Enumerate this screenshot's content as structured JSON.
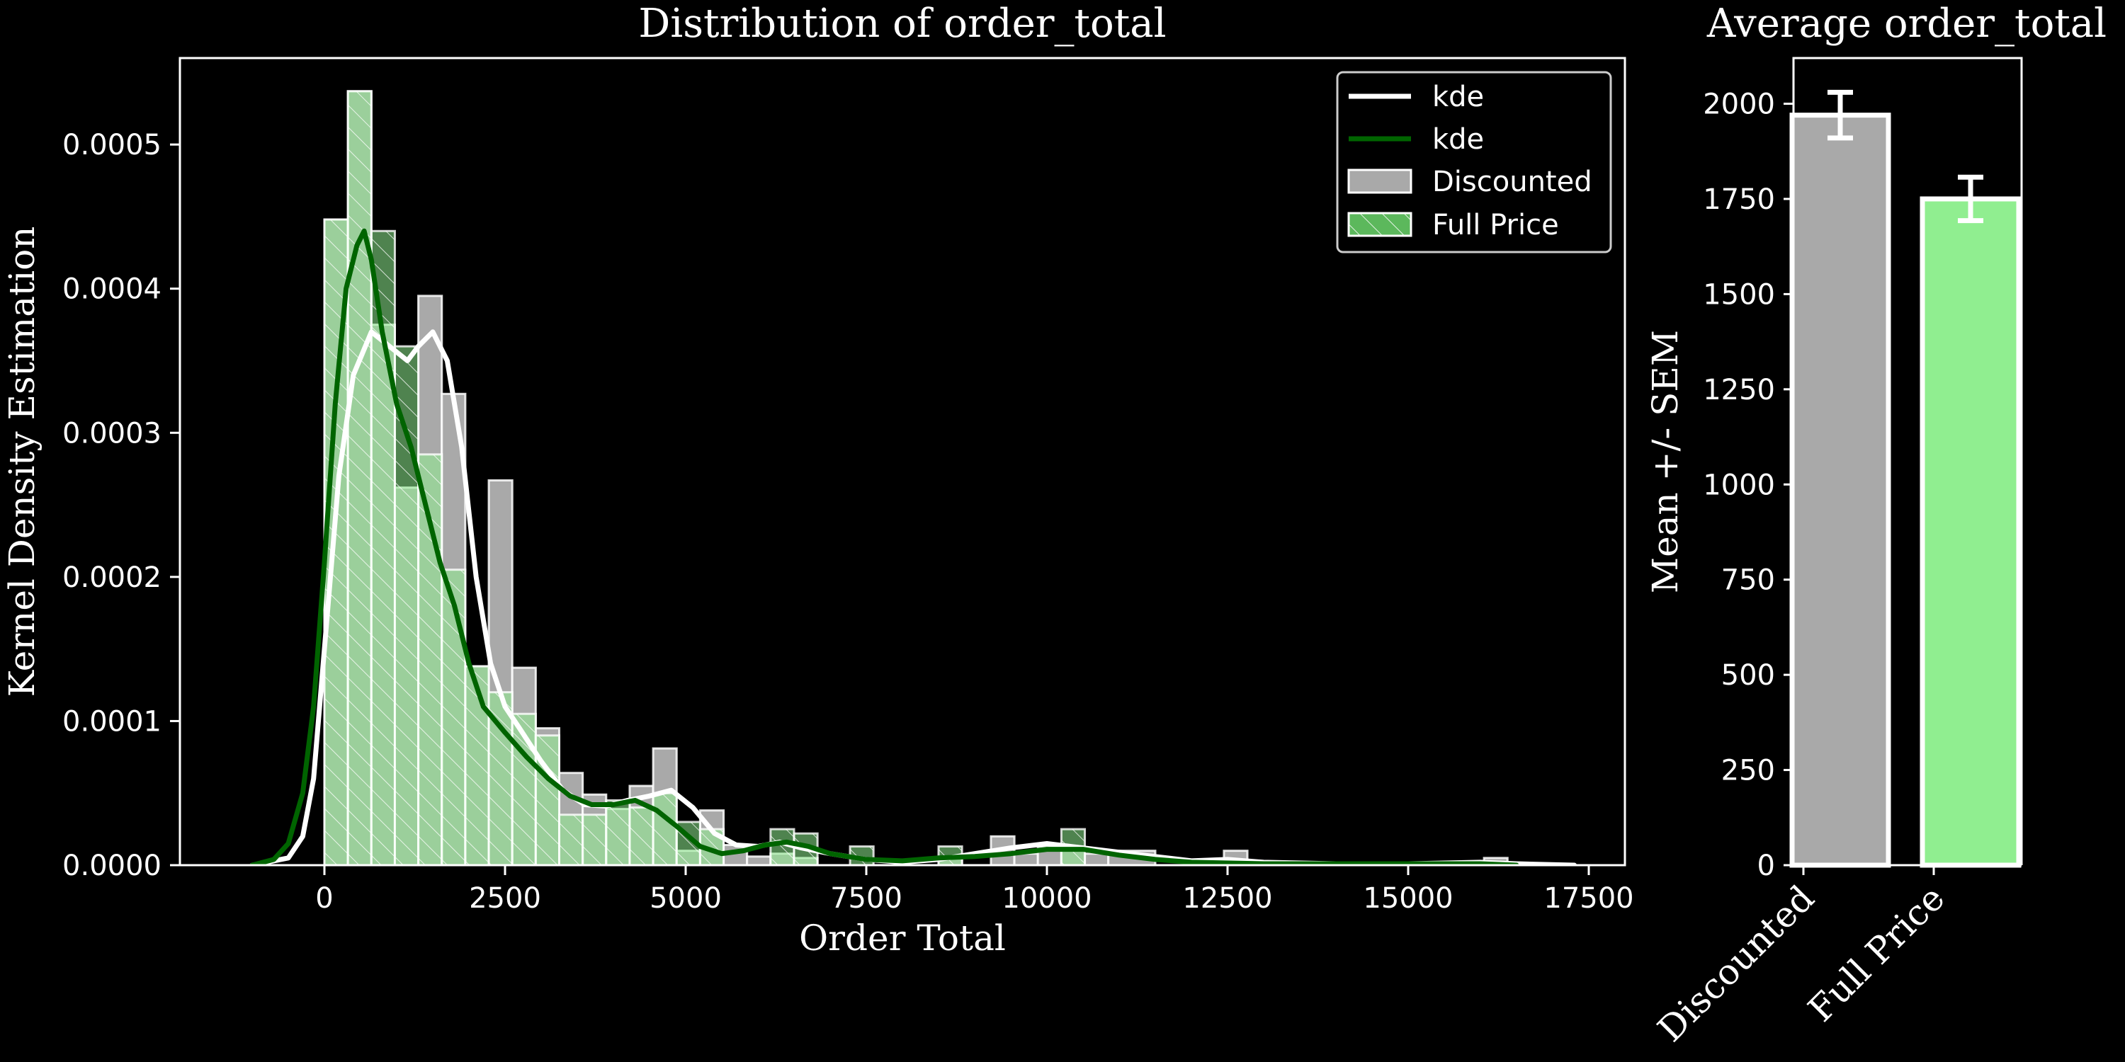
{
  "colors": {
    "background": "#000000",
    "axes": "#ffffff",
    "discounted": "#a9a9a9",
    "full_price": "#90ee90",
    "kde_discounted": "#ffffff",
    "kde_full_price": "#006400"
  },
  "chart_data": [
    {
      "type": "bar",
      "subtype": "histogram_with_kde",
      "title": "Distribution of order_total",
      "xlabel": "Order Total",
      "ylabel": "Kernel Density Estimation",
      "xlim": [
        -2000,
        18000
      ],
      "ylim": [
        0,
        0.00056
      ],
      "xticks": [
        0,
        2500,
        5000,
        7500,
        10000,
        12500,
        15000,
        17500
      ],
      "xtick_labels": [
        "0",
        "2500",
        "5000",
        "7500",
        "10000",
        "12500",
        "15000",
        "17500"
      ],
      "yticks": [
        0,
        0.0001,
        0.0002,
        0.0003,
        0.0004,
        0.0005
      ],
      "ytick_labels": [
        "0.0000",
        "0.0001",
        "0.0002",
        "0.0003",
        "0.0004",
        "0.0005"
      ],
      "grid": false,
      "legend_position": "top-right",
      "legend": [
        {
          "label": "kde",
          "kind": "line",
          "color": "#ffffff"
        },
        {
          "label": "kde",
          "kind": "line",
          "color": "#006400"
        },
        {
          "label": "Discounted",
          "kind": "patch",
          "color": "#a9a9a9"
        },
        {
          "label": "Full Price",
          "kind": "hatched-patch",
          "color": "#90ee90"
        }
      ],
      "histograms": [
        {
          "name": "Discounted",
          "bins": [
            {
              "x0": 0,
              "x1": 325,
              "density": 0.000448
            },
            {
              "x0": 325,
              "x1": 650,
              "density": 0.000537
            },
            {
              "x0": 650,
              "x1": 975,
              "density": 0.000375
            },
            {
              "x0": 975,
              "x1": 1300,
              "density": 0.000262
            },
            {
              "x0": 1300,
              "x1": 1625,
              "density": 0.000395
            },
            {
              "x0": 1625,
              "x1": 1950,
              "density": 0.000327
            },
            {
              "x0": 1950,
              "x1": 2275,
              "density": 0.000138
            },
            {
              "x0": 2275,
              "x1": 2600,
              "density": 0.000267
            },
            {
              "x0": 2600,
              "x1": 2925,
              "density": 0.000137
            },
            {
              "x0": 2925,
              "x1": 3250,
              "density": 9.5e-05
            },
            {
              "x0": 3250,
              "x1": 3575,
              "density": 6.4e-05
            },
            {
              "x0": 3575,
              "x1": 3900,
              "density": 4.9e-05
            },
            {
              "x0": 3900,
              "x1": 4225,
              "density": 3.9e-05
            },
            {
              "x0": 4225,
              "x1": 4550,
              "density": 5.5e-05
            },
            {
              "x0": 4550,
              "x1": 4875,
              "density": 8.1e-05
            },
            {
              "x0": 4875,
              "x1": 5200,
              "density": 1e-05
            },
            {
              "x0": 5200,
              "x1": 5525,
              "density": 3.8e-05
            },
            {
              "x0": 5525,
              "x1": 5850,
              "density": 1.4e-05
            },
            {
              "x0": 5850,
              "x1": 6175,
              "density": 6e-06
            },
            {
              "x0": 6175,
              "x1": 6500,
              "density": 8e-06
            },
            {
              "x0": 6500,
              "x1": 6825,
              "density": 5e-06
            },
            {
              "x0": 8500,
              "x1": 8825,
              "density": 5e-06
            },
            {
              "x0": 9225,
              "x1": 9550,
              "density": 2e-05
            },
            {
              "x0": 9550,
              "x1": 9875,
              "density": 8e-06
            },
            {
              "x0": 9875,
              "x1": 10200,
              "density": 1.3e-05
            },
            {
              "x0": 10200,
              "x1": 10525,
              "density": 1.1e-05
            },
            {
              "x0": 10525,
              "x1": 10850,
              "density": 8e-06
            },
            {
              "x0": 10850,
              "x1": 11500,
              "density": 1e-05
            },
            {
              "x0": 12450,
              "x1": 12775,
              "density": 1e-05
            },
            {
              "x0": 16050,
              "x1": 16375,
              "density": 5e-06
            }
          ]
        },
        {
          "name": "Full Price",
          "bins": [
            {
              "x0": 0,
              "x1": 325,
              "density": 0.000448
            },
            {
              "x0": 325,
              "x1": 650,
              "density": 0.000537
            },
            {
              "x0": 650,
              "x1": 975,
              "density": 0.00044
            },
            {
              "x0": 975,
              "x1": 1300,
              "density": 0.00036
            },
            {
              "x0": 1300,
              "x1": 1625,
              "density": 0.000285
            },
            {
              "x0": 1625,
              "x1": 1950,
              "density": 0.000205
            },
            {
              "x0": 1950,
              "x1": 2275,
              "density": 0.000138
            },
            {
              "x0": 2275,
              "x1": 2600,
              "density": 0.00012
            },
            {
              "x0": 2600,
              "x1": 2925,
              "density": 0.000105
            },
            {
              "x0": 2925,
              "x1": 3250,
              "density": 9e-05
            },
            {
              "x0": 3250,
              "x1": 3575,
              "density": 3.5e-05
            },
            {
              "x0": 3575,
              "x1": 3900,
              "density": 3.5e-05
            },
            {
              "x0": 3900,
              "x1": 4225,
              "density": 4.5e-05
            },
            {
              "x0": 4225,
              "x1": 4550,
              "density": 4e-05
            },
            {
              "x0": 4550,
              "x1": 4875,
              "density": 5e-05
            },
            {
              "x0": 4875,
              "x1": 5200,
              "density": 3e-05
            },
            {
              "x0": 5200,
              "x1": 5525,
              "density": 2.5e-05
            },
            {
              "x0": 6175,
              "x1": 6500,
              "density": 2.5e-05
            },
            {
              "x0": 6500,
              "x1": 6825,
              "density": 2.2e-05
            },
            {
              "x0": 7275,
              "x1": 7600,
              "density": 1.3e-05
            },
            {
              "x0": 8500,
              "x1": 8825,
              "density": 1.3e-05
            },
            {
              "x0": 10200,
              "x1": 10525,
              "density": 2.5e-05
            }
          ]
        }
      ],
      "kde": [
        {
          "name": "kde",
          "group": "Discounted",
          "x": [
            -1000,
            -500,
            -300,
            -150,
            0,
            200,
            400,
            650,
            900,
            1150,
            1300,
            1500,
            1700,
            1900,
            2100,
            2300,
            2500,
            2700,
            3000,
            3300,
            3600,
            3900,
            4200,
            4500,
            4800,
            5100,
            5400,
            5700,
            6000,
            6300,
            6600,
            7000,
            7500,
            8000,
            8500,
            9000,
            9500,
            10000,
            10500,
            11000,
            11500,
            12000,
            12500,
            13000,
            14000,
            15000,
            16000,
            16500,
            17300
          ],
          "y": [
            0,
            5e-06,
            2e-05,
            6e-05,
            0.00015,
            0.00027,
            0.00034,
            0.00037,
            0.00036,
            0.00035,
            0.00036,
            0.00037,
            0.00035,
            0.00029,
            0.0002,
            0.00014,
            0.00011,
            9.5e-05,
            7.2e-05,
            5.2e-05,
            4.2e-05,
            4.1e-05,
            4.5e-05,
            4.8e-05,
            5.2e-05,
            4e-05,
            2.2e-05,
            1.4e-05,
            1.3e-05,
            1.6e-05,
            1.2e-05,
            8e-06,
            4e-06,
            2e-06,
            4e-06,
            8e-06,
            1.2e-05,
            1.5e-05,
            1.2e-05,
            9e-06,
            6e-06,
            3e-06,
            4e-06,
            2e-06,
            1e-06,
            1e-06,
            2e-06,
            1e-06,
            0
          ]
        },
        {
          "name": "kde",
          "group": "Full Price",
          "x": [
            -1000,
            -700,
            -500,
            -300,
            -150,
            0,
            150,
            300,
            450,
            550,
            650,
            800,
            1000,
            1200,
            1400,
            1600,
            1800,
            2000,
            2200,
            2500,
            2800,
            3100,
            3400,
            3700,
            4000,
            4300,
            4600,
            4900,
            5200,
            5500,
            5800,
            6100,
            6400,
            6700,
            7000,
            7500,
            8000,
            8500,
            9000,
            9500,
            10000,
            10500,
            11000,
            11500,
            12000,
            13000,
            14000,
            15000,
            16000,
            16500
          ],
          "y": [
            0,
            4e-06,
            1.5e-05,
            5e-05,
            0.00011,
            0.00021,
            0.00032,
            0.0004,
            0.00043,
            0.00044,
            0.00042,
            0.00037,
            0.00032,
            0.00029,
            0.00025,
            0.00021,
            0.00018,
            0.00014,
            0.00011,
            9.2e-05,
            7.5e-05,
            6e-05,
            4.8e-05,
            4.2e-05,
            4.2e-05,
            4.5e-05,
            3.8e-05,
            2.6e-05,
            1.3e-05,
            8e-06,
            1e-05,
            1.4e-05,
            1.6e-05,
            1.3e-05,
            8e-06,
            4e-06,
            3e-06,
            5e-06,
            6e-06,
            8e-06,
            1.1e-05,
            1.1e-05,
            7e-06,
            4e-06,
            2e-06,
            1e-06,
            1e-06,
            1e-06,
            1e-06,
            0
          ]
        }
      ]
    },
    {
      "type": "bar",
      "title": "Average order_total",
      "xlabel": "",
      "ylabel": "Mean +/- SEM",
      "categories": [
        "Discounted",
        "Full Price"
      ],
      "values": [
        1970,
        1750
      ],
      "errors": [
        60,
        57
      ],
      "bar_colors": [
        "#a9a9a9",
        "#90ee90"
      ],
      "ylim": [
        0,
        2120
      ],
      "yticks": [
        0,
        250,
        500,
        750,
        1000,
        1250,
        1500,
        1750,
        2000
      ],
      "ytick_labels": [
        "0",
        "250",
        "500",
        "750",
        "1000",
        "1250",
        "1500",
        "1750",
        "2000"
      ],
      "grid": false
    }
  ]
}
